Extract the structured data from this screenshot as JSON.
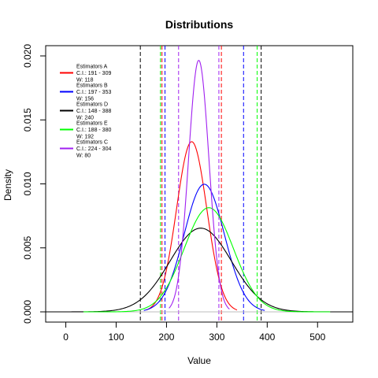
{
  "chart_data": {
    "type": "line",
    "title": "Distributions",
    "xlabel": "Value",
    "ylabel": "Density",
    "xlim": [
      -40,
      570
    ],
    "ylim": [
      -0.0008,
      0.0208
    ],
    "x_ticks": [
      0,
      100,
      200,
      300,
      400,
      500
    ],
    "x_tick_labels": [
      "0",
      "100",
      "200",
      "300",
      "400",
      "500"
    ],
    "y_ticks": [
      0,
      0.005,
      0.01,
      0.015,
      0.02
    ],
    "y_tick_labels": [
      "0.000",
      "0.005",
      "0.010",
      "0.015",
      "0.020"
    ],
    "baseline_color": "#bebebe",
    "legend_position": "top-left",
    "series": [
      {
        "name": "Estimators A",
        "ci_label": "C.I.: 191 - 309",
        "width_label": "W: 118",
        "color": "#ff0000",
        "mean": 250,
        "sd": 30,
        "x_range": [
          160,
          340
        ],
        "ci": [
          191,
          309
        ]
      },
      {
        "name": "Estimators B",
        "ci_label": "C.I.: 197 - 353",
        "width_label": "W: 156",
        "color": "#0000ff",
        "mean": 275,
        "sd": 40,
        "x_range": [
          155,
          395
        ],
        "ci": [
          197,
          353
        ]
      },
      {
        "name": "Estimators D",
        "ci_label": "C.I.: 148 - 388",
        "width_label": "W: 240",
        "color": "#000000",
        "mean": 268,
        "sd": 61,
        "x_range": [
          -40,
          570
        ],
        "ci": [
          148,
          388
        ]
      },
      {
        "name": "Estimators E",
        "ci_label": "C.I.: 188 - 380",
        "width_label": "W: 192",
        "color": "#00ff00",
        "mean": 284,
        "sd": 49,
        "x_range": [
          35,
          525
        ],
        "ci": [
          188,
          380
        ]
      },
      {
        "name": "Estimators C",
        "ci_label": "C.I.: 224 - 304",
        "width_label": "W: 80",
        "color": "#a020f0",
        "mean": 264,
        "sd": 20.3,
        "x_range": [
          205,
          325
        ],
        "ci": [
          224,
          304
        ]
      }
    ]
  }
}
